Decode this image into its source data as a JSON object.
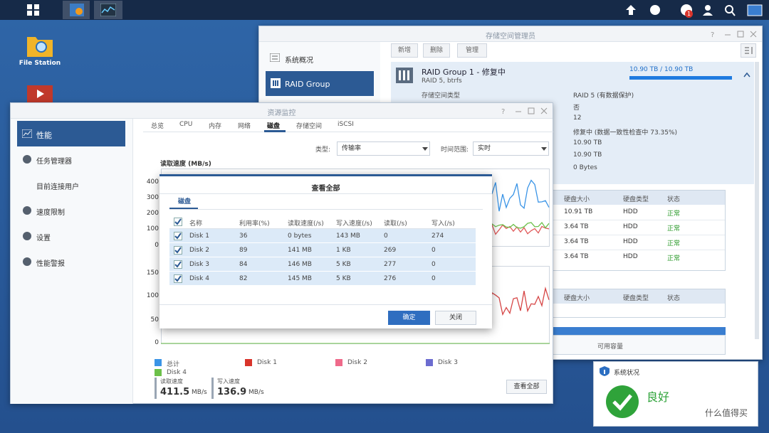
{
  "taskbar": {
    "badge": "1"
  },
  "desktop": {
    "icons": [
      {
        "label": "File Station"
      }
    ]
  },
  "storage_manager": {
    "title": "存储空间管理员",
    "sidebar": [
      "系统概况",
      "RAID Group"
    ],
    "toolbar": [
      "新增",
      "删除",
      "管理"
    ],
    "raid": {
      "name": "RAID Group 1 - 修复中",
      "subtitle": "RAID 5, btrfs",
      "capacity": "10.90 TB / 10.90 TB",
      "detail_label": "存储空间类型",
      "details": [
        "RAID 5 (有数据保护)",
        "否",
        "12",
        "修复中 (数据一致性检查中 73.35%)",
        "10.90 TB",
        "10.90 TB",
        "0 Bytes"
      ]
    },
    "disk_table": {
      "headers": [
        "硬盘大小",
        "硬盘类型",
        "状态"
      ],
      "rows": [
        [
          "10.91 TB",
          "HDD",
          "正常"
        ],
        [
          "3.64 TB",
          "HDD",
          "正常"
        ],
        [
          "3.64 TB",
          "HDD",
          "正常"
        ],
        [
          "3.64 TB",
          "HDD",
          "正常"
        ]
      ]
    },
    "second_table": {
      "headers": [
        "硬盘大小",
        "硬盘类型",
        "状态"
      ]
    },
    "footer": "可用容量"
  },
  "resource_monitor": {
    "title": "资源监控",
    "sidebar": [
      "性能",
      "任务管理器",
      "目前连接用户",
      "速度限制",
      "设置",
      "性能警报"
    ],
    "tabs": [
      "总览",
      "CPU",
      "内存",
      "网络",
      "磁盘",
      "存储空间",
      "iSCSI"
    ],
    "type_label": "类型:",
    "type_value": "传输率",
    "range_label": "时间范围:",
    "range_value": "实时",
    "chart_title": "读取速度 (MB/s)",
    "chart1_ticks": [
      "400",
      "300",
      "200",
      "100",
      "0"
    ],
    "chart2_ticks": [
      "150",
      "100",
      "50",
      "0"
    ],
    "legend": [
      "总计",
      "Disk 1",
      "Disk 2",
      "Disk 3",
      "Disk 4"
    ],
    "read_label": "读取速度",
    "read_value": "411.5",
    "read_unit": "MB/s",
    "write_label": "写入速度",
    "write_value": "136.9",
    "write_unit": "MB/s",
    "view_all": "查看全部"
  },
  "dialog": {
    "title": "查看全部",
    "tab": "磁盘",
    "headers": [
      "名称",
      "利用率(%)",
      "读取速度(/s)",
      "写入速度(/s)",
      "读取(/s)",
      "写入(/s)"
    ],
    "rows": [
      [
        "Disk 1",
        "36",
        "0 bytes",
        "143 MB",
        "0",
        "274"
      ],
      [
        "Disk 2",
        "89",
        "141 MB",
        "1 KB",
        "269",
        "0"
      ],
      [
        "Disk 3",
        "84",
        "146 MB",
        "5 KB",
        "277",
        "0"
      ],
      [
        "Disk 4",
        "82",
        "145 MB",
        "5 KB",
        "276",
        "0"
      ]
    ],
    "ok": "确定",
    "close": "关闭"
  },
  "system_status": {
    "title": "系统状况",
    "status": "良好"
  },
  "watermark": "什么值得买"
}
